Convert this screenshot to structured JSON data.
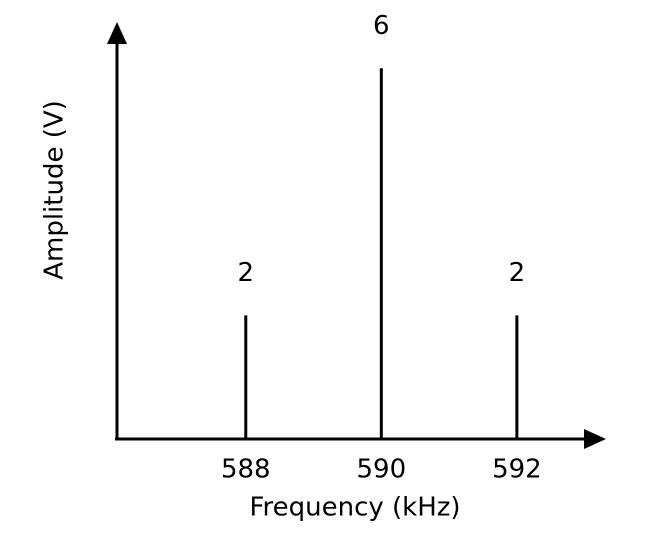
{
  "chart_data": {
    "type": "stem",
    "x_label": "Frequency (kHz)",
    "y_label": "Amplitude (V)",
    "x": [
      588,
      590,
      592
    ],
    "values": [
      2,
      6,
      2
    ],
    "color": "#000000",
    "xlim": [
      586.1,
      593.3
    ],
    "xticks": [
      588,
      590,
      592
    ],
    "ylim": [
      0,
      6.7
    ]
  }
}
